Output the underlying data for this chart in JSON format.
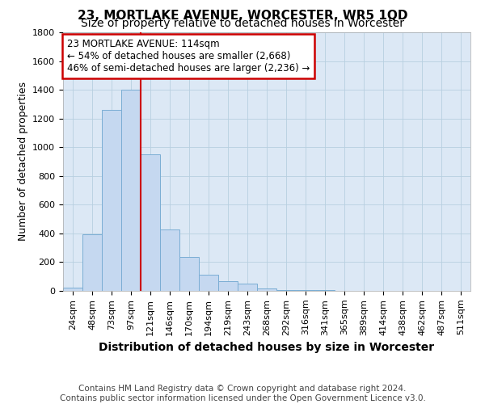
{
  "title": "23, MORTLAKE AVENUE, WORCESTER, WR5 1QD",
  "subtitle": "Size of property relative to detached houses in Worcester",
  "xlabel": "Distribution of detached houses by size in Worcester",
  "ylabel": "Number of detached properties",
  "categories": [
    "24sqm",
    "48sqm",
    "73sqm",
    "97sqm",
    "121sqm",
    "146sqm",
    "170sqm",
    "194sqm",
    "219sqm",
    "243sqm",
    "268sqm",
    "292sqm",
    "316sqm",
    "341sqm",
    "365sqm",
    "389sqm",
    "414sqm",
    "438sqm",
    "462sqm",
    "487sqm",
    "511sqm"
  ],
  "values": [
    25,
    395,
    1260,
    1400,
    950,
    425,
    235,
    110,
    65,
    48,
    15,
    8,
    5,
    3,
    2,
    1,
    1,
    1,
    1,
    0,
    0
  ],
  "bar_color": "#c5d8f0",
  "bar_edgecolor": "#7aadd4",
  "vline_color": "#cc0000",
  "vline_x_index": 4,
  "annotation_text": "23 MORTLAKE AVENUE: 114sqm\n← 54% of detached houses are smaller (2,668)\n46% of semi-detached houses are larger (2,236) →",
  "annotation_box_color": "#ffffff",
  "annotation_box_edgecolor": "#cc0000",
  "ylim": [
    0,
    1800
  ],
  "yticks": [
    0,
    200,
    400,
    600,
    800,
    1000,
    1200,
    1400,
    1600,
    1800
  ],
  "footer_line1": "Contains HM Land Registry data © Crown copyright and database right 2024.",
  "footer_line2": "Contains public sector information licensed under the Open Government Licence v3.0.",
  "background_color": "#ffffff",
  "plot_bg_color": "#dce8f5",
  "grid_color": "#b8cfe0",
  "title_fontsize": 11,
  "subtitle_fontsize": 10,
  "xlabel_fontsize": 10,
  "ylabel_fontsize": 9,
  "tick_fontsize": 8,
  "annotation_fontsize": 8.5,
  "footer_fontsize": 7.5
}
